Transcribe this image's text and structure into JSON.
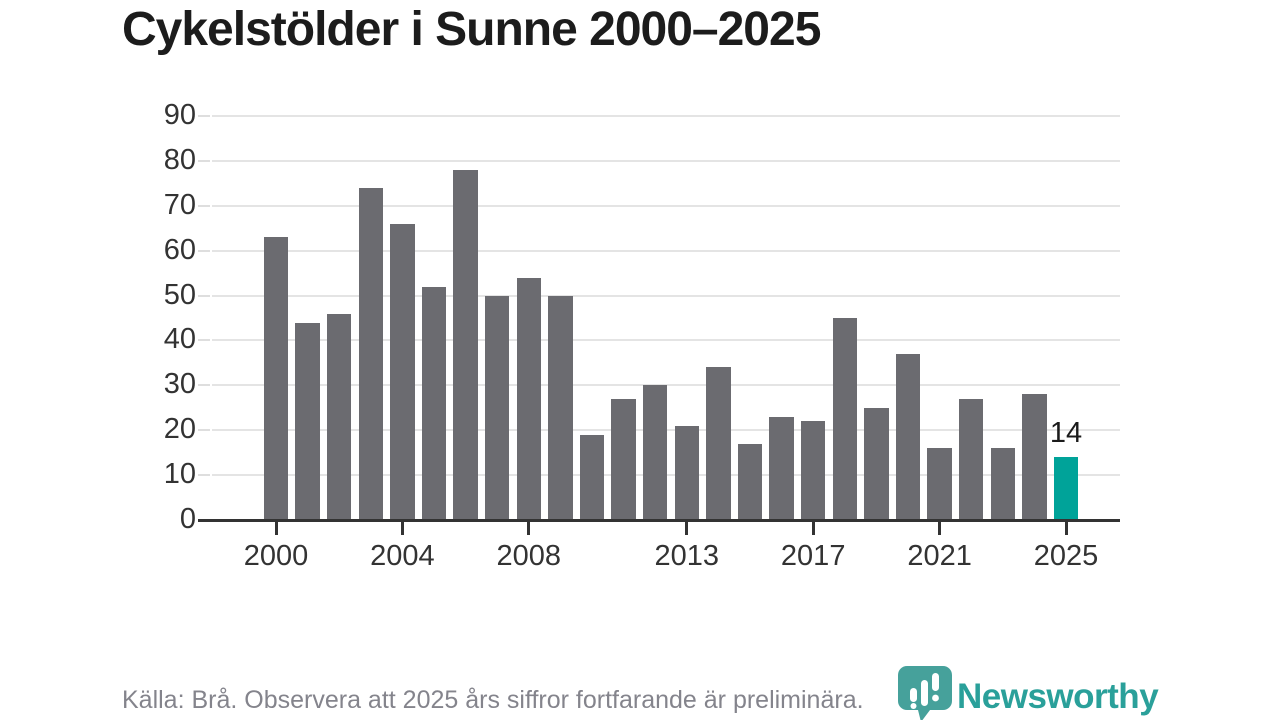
{
  "title": "Cykelstölder i Sunne 2000–2025",
  "footer": {
    "source_note": "Källa: Brå. Observera att 2025 års siffror fortfarande är preliminära."
  },
  "branding": {
    "logo_text": "Newsworthy",
    "logo_icon": "newsworthy-pin-barchart-icon",
    "wordmark_color": "#2aa09a",
    "icon_color": "#46a19b"
  },
  "chart_data": {
    "type": "bar",
    "title": "Cykelstölder i Sunne 2000–2025",
    "xlabel": "",
    "ylabel": "",
    "categories": [
      2000,
      2001,
      2002,
      2003,
      2004,
      2005,
      2006,
      2007,
      2008,
      2009,
      2010,
      2011,
      2012,
      2013,
      2014,
      2015,
      2016,
      2017,
      2018,
      2019,
      2020,
      2021,
      2022,
      2023,
      2024,
      2025
    ],
    "values": [
      63,
      44,
      46,
      74,
      66,
      52,
      78,
      50,
      54,
      50,
      19,
      27,
      30,
      21,
      34,
      17,
      23,
      22,
      45,
      25,
      37,
      16,
      27,
      16,
      28,
      14
    ],
    "ylim": [
      0,
      90
    ],
    "yticks": [
      0,
      10,
      20,
      30,
      40,
      50,
      60,
      70,
      80,
      90
    ],
    "xtick_labels": [
      "2000",
      "2004",
      "2008",
      "2013",
      "2017",
      "2021",
      "2025"
    ],
    "xtick_indices": [
      0,
      4,
      8,
      13,
      17,
      21,
      25
    ],
    "grid": "horizontal",
    "legend": "none",
    "bar_color": "#6b6b70",
    "highlight_index": 25,
    "highlight_color": "#00a399",
    "annotations": [
      {
        "index": 25,
        "text": "14"
      }
    ],
    "axis_color": "#333333",
    "gridline_color": "#e4e4e4"
  }
}
